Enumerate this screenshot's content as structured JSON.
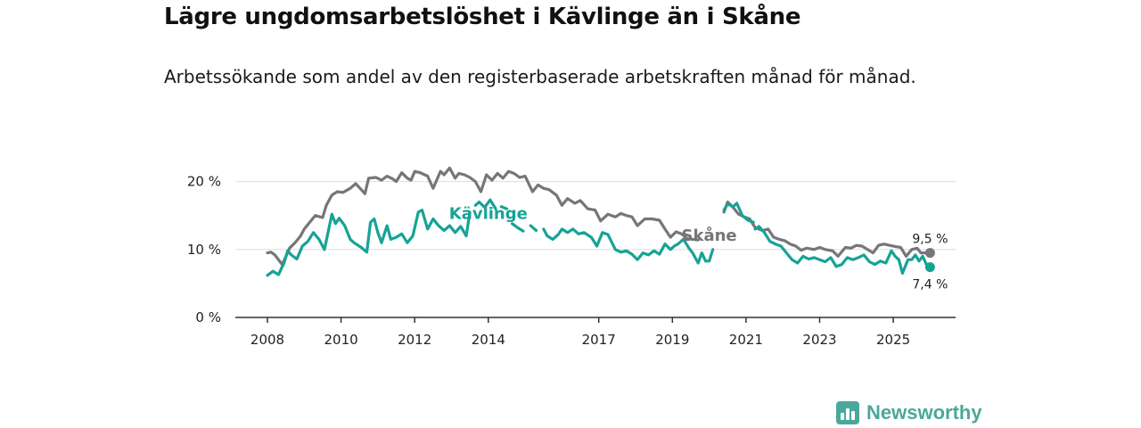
{
  "header": {
    "title": "Lägre ungdomsarbetslöshet i Kävlinge än i Skåne",
    "subtitle": "Arbetssökande som andel av den registerbaserade arbetskraften månad för månad."
  },
  "brand": {
    "name": "Newsworthy",
    "color": "#4aa89a"
  },
  "chart_data": {
    "type": "line",
    "title": "Lägre ungdomsarbetslöshet i Kävlinge än i Skåne",
    "subtitle": "Arbetssökande som andel av den registerbaserade arbetskraften månad för månad.",
    "xlabel": "",
    "ylabel": "",
    "xlim": [
      2008.0,
      2026.5
    ],
    "ylim": [
      0,
      22
    ],
    "grid": true,
    "x_ticks": [
      {
        "value": 2008,
        "label": "2008"
      },
      {
        "value": 2010,
        "label": "2010"
      },
      {
        "value": 2012,
        "label": "2012"
      },
      {
        "value": 2014,
        "label": "2014"
      },
      {
        "value": 2017,
        "label": "2017"
      },
      {
        "value": 2019,
        "label": "2019"
      },
      {
        "value": 2021,
        "label": "2021"
      },
      {
        "value": 2023,
        "label": "2023"
      },
      {
        "value": 2025,
        "label": "2025"
      }
    ],
    "y_ticks": [
      {
        "value": 0,
        "label": "0 %"
      },
      {
        "value": 10,
        "label": "10 %"
      },
      {
        "value": 20,
        "label": "20 %"
      }
    ],
    "series": [
      {
        "name": "Skåne",
        "color": "#76757a",
        "end_label": "9,5 %",
        "points": [
          [
            2008.0,
            9.5
          ],
          [
            2008.1,
            9.6
          ],
          [
            2008.2,
            9.2
          ],
          [
            2008.3,
            8.5
          ],
          [
            2008.4,
            7.8
          ],
          [
            2008.5,
            8.9
          ],
          [
            2008.6,
            10.2
          ],
          [
            2008.75,
            11.0
          ],
          [
            2008.9,
            12.0
          ],
          [
            2009.0,
            13.0
          ],
          [
            2009.15,
            14.0
          ],
          [
            2009.3,
            15.0
          ],
          [
            2009.5,
            14.7
          ],
          [
            2009.6,
            16.5
          ],
          [
            2009.75,
            18.0
          ],
          [
            2009.9,
            18.5
          ],
          [
            2010.05,
            18.4
          ],
          [
            2010.25,
            19.0
          ],
          [
            2010.4,
            19.7
          ],
          [
            2010.55,
            18.8
          ],
          [
            2010.65,
            18.2
          ],
          [
            2010.75,
            20.5
          ],
          [
            2010.95,
            20.6
          ],
          [
            2011.1,
            20.2
          ],
          [
            2011.25,
            20.8
          ],
          [
            2011.4,
            20.4
          ],
          [
            2011.5,
            20.0
          ],
          [
            2011.65,
            21.3
          ],
          [
            2011.8,
            20.5
          ],
          [
            2011.9,
            20.2
          ],
          [
            2012.0,
            21.5
          ],
          [
            2012.15,
            21.3
          ],
          [
            2012.35,
            20.8
          ],
          [
            2012.5,
            19.0
          ],
          [
            2012.7,
            21.5
          ],
          [
            2012.8,
            21.0
          ],
          [
            2012.95,
            22.0
          ],
          [
            2013.1,
            20.5
          ],
          [
            2013.2,
            21.2
          ],
          [
            2013.35,
            21.0
          ],
          [
            2013.5,
            20.6
          ],
          [
            2013.65,
            20.0
          ],
          [
            2013.8,
            18.5
          ],
          [
            2013.95,
            21.0
          ],
          [
            2014.1,
            20.2
          ],
          [
            2014.25,
            21.2
          ],
          [
            2014.4,
            20.5
          ],
          [
            2014.55,
            21.5
          ],
          [
            2014.7,
            21.2
          ],
          [
            2014.85,
            20.6
          ],
          [
            2015.0,
            20.8
          ],
          [
            2015.2,
            18.5
          ],
          [
            2015.35,
            19.5
          ],
          [
            2015.5,
            19.0
          ],
          [
            2015.65,
            18.8
          ],
          [
            2015.85,
            18.0
          ],
          [
            2016.0,
            16.5
          ],
          [
            2016.15,
            17.5
          ],
          [
            2016.35,
            16.8
          ],
          [
            2016.5,
            17.2
          ],
          [
            2016.7,
            16.0
          ],
          [
            2016.9,
            15.8
          ],
          [
            2017.05,
            14.2
          ],
          [
            2017.25,
            15.2
          ],
          [
            2017.45,
            14.8
          ],
          [
            2017.6,
            15.3
          ],
          [
            2017.75,
            15.0
          ],
          [
            2017.9,
            14.8
          ],
          [
            2018.05,
            13.5
          ],
          [
            2018.25,
            14.5
          ],
          [
            2018.45,
            14.5
          ],
          [
            2018.65,
            14.3
          ],
          [
            2018.8,
            13.0
          ],
          [
            2018.95,
            11.8
          ],
          [
            2019.1,
            12.6
          ],
          [
            2019.25,
            12.3
          ],
          [
            2019.4,
            11.6
          ],
          [
            2019.55,
            11.5
          ],
          [
            2019.7,
            11.4
          ],
          null,
          [
            2020.4,
            15.5
          ],
          [
            2020.5,
            17.0
          ],
          [
            2020.65,
            16.2
          ],
          [
            2020.8,
            15.2
          ],
          [
            2020.95,
            14.8
          ],
          [
            2021.1,
            14.5
          ],
          [
            2021.25,
            13.2
          ],
          [
            2021.45,
            12.8
          ],
          [
            2021.6,
            13.0
          ],
          [
            2021.75,
            11.8
          ],
          [
            2021.9,
            11.5
          ],
          [
            2022.05,
            11.3
          ],
          [
            2022.2,
            10.8
          ],
          [
            2022.35,
            10.5
          ],
          [
            2022.5,
            9.9
          ],
          [
            2022.65,
            10.2
          ],
          [
            2022.85,
            10.0
          ],
          [
            2023.0,
            10.3
          ],
          [
            2023.15,
            10.0
          ],
          [
            2023.35,
            9.8
          ],
          [
            2023.5,
            9.0
          ],
          [
            2023.7,
            10.3
          ],
          [
            2023.85,
            10.2
          ],
          [
            2024.0,
            10.6
          ],
          [
            2024.15,
            10.5
          ],
          [
            2024.3,
            10.0
          ],
          [
            2024.45,
            9.5
          ],
          [
            2024.6,
            10.6
          ],
          [
            2024.75,
            10.8
          ],
          [
            2024.9,
            10.6
          ],
          [
            2025.1,
            10.4
          ],
          [
            2025.2,
            10.3
          ],
          [
            2025.35,
            9.0
          ],
          [
            2025.5,
            10.0
          ],
          [
            2025.65,
            10.2
          ],
          [
            2025.75,
            9.5
          ],
          [
            2025.9,
            9.5
          ],
          [
            2026.0,
            9.5
          ]
        ]
      },
      {
        "name": "Kävlinge",
        "color": "#16a396",
        "end_label": "7,4 %",
        "points": [
          [
            2008.0,
            6.2
          ],
          [
            2008.15,
            6.8
          ],
          [
            2008.3,
            6.3
          ],
          [
            2008.45,
            8.0
          ],
          [
            2008.55,
            9.8
          ],
          [
            2008.65,
            9.2
          ],
          [
            2008.8,
            8.6
          ],
          [
            2008.95,
            10.5
          ],
          [
            2009.1,
            11.2
          ],
          [
            2009.25,
            12.5
          ],
          [
            2009.4,
            11.5
          ],
          [
            2009.55,
            10.0
          ],
          [
            2009.75,
            15.2
          ],
          [
            2009.85,
            13.8
          ],
          [
            2009.95,
            14.6
          ],
          [
            2010.1,
            13.5
          ],
          [
            2010.25,
            11.5
          ],
          [
            2010.35,
            11.0
          ],
          [
            2010.55,
            10.3
          ],
          [
            2010.7,
            9.6
          ],
          [
            2010.8,
            14.0
          ],
          [
            2010.9,
            14.5
          ],
          [
            2011.0,
            12.5
          ],
          [
            2011.1,
            11.0
          ],
          [
            2011.25,
            13.5
          ],
          [
            2011.35,
            11.5
          ],
          [
            2011.5,
            11.8
          ],
          [
            2011.65,
            12.3
          ],
          [
            2011.8,
            11.0
          ],
          [
            2011.95,
            12.0
          ],
          [
            2012.1,
            15.5
          ],
          [
            2012.2,
            15.8
          ],
          [
            2012.35,
            13.0
          ],
          [
            2012.5,
            14.5
          ],
          [
            2012.65,
            13.5
          ],
          [
            2012.8,
            12.8
          ],
          [
            2012.95,
            13.5
          ],
          [
            2013.1,
            12.5
          ],
          [
            2013.25,
            13.4
          ],
          [
            2013.4,
            12.0
          ],
          [
            2013.5,
            15.5
          ],
          null,
          [
            2013.65,
            16.5
          ],
          [
            2013.75,
            17.0
          ],
          [
            2013.9,
            16.2
          ],
          [
            2014.05,
            17.3
          ],
          [
            2014.2,
            16.0
          ],
          null,
          [
            2014.35,
            16.3
          ],
          [
            2014.5,
            16.0
          ],
          null,
          [
            2014.65,
            13.8
          ],
          [
            2014.8,
            13.2
          ],
          [
            2014.95,
            12.7
          ],
          null,
          [
            2015.15,
            13.5
          ],
          [
            2015.3,
            12.8
          ],
          null,
          [
            2015.5,
            13.0
          ],
          [
            2015.6,
            12.0
          ],
          [
            2015.75,
            11.5
          ],
          [
            2015.9,
            12.2
          ],
          [
            2016.0,
            13.0
          ],
          [
            2016.15,
            12.5
          ],
          [
            2016.3,
            13.0
          ],
          [
            2016.45,
            12.3
          ],
          [
            2016.6,
            12.5
          ],
          [
            2016.8,
            11.8
          ],
          [
            2016.95,
            10.5
          ],
          [
            2017.1,
            12.5
          ],
          [
            2017.25,
            12.2
          ],
          [
            2017.45,
            10.0
          ],
          [
            2017.6,
            9.6
          ],
          [
            2017.75,
            9.8
          ],
          [
            2017.9,
            9.3
          ],
          [
            2018.05,
            8.5
          ],
          [
            2018.2,
            9.5
          ],
          [
            2018.35,
            9.2
          ],
          [
            2018.5,
            9.8
          ],
          [
            2018.65,
            9.3
          ],
          [
            2018.8,
            10.8
          ],
          [
            2018.95,
            10.0
          ],
          [
            2019.05,
            10.5
          ],
          [
            2019.15,
            10.8
          ],
          [
            2019.3,
            11.5
          ],
          [
            2019.45,
            10.2
          ],
          [
            2019.55,
            9.5
          ],
          [
            2019.7,
            8.0
          ],
          [
            2019.8,
            9.5
          ],
          [
            2019.9,
            8.3
          ],
          [
            2020.0,
            8.3
          ],
          [
            2020.1,
            10.0
          ],
          null,
          [
            2021.25,
            13.0
          ],
          [
            2021.35,
            13.4
          ],
          [
            2021.5,
            12.5
          ],
          [
            2021.65,
            11.2
          ],
          [
            2021.8,
            10.8
          ],
          [
            2021.95,
            10.5
          ],
          [
            2022.1,
            9.5
          ],
          [
            2022.25,
            8.5
          ],
          [
            2022.4,
            8.0
          ],
          [
            2022.55,
            9.0
          ],
          [
            2022.7,
            8.6
          ],
          [
            2022.85,
            8.8
          ],
          [
            2023.0,
            8.5
          ],
          [
            2023.15,
            8.2
          ],
          [
            2023.3,
            8.8
          ],
          [
            2023.45,
            7.5
          ],
          [
            2023.6,
            7.8
          ],
          [
            2023.75,
            8.8
          ],
          [
            2023.9,
            8.5
          ],
          [
            2024.05,
            8.8
          ],
          [
            2024.2,
            9.2
          ],
          [
            2024.35,
            8.2
          ],
          [
            2024.5,
            7.8
          ],
          [
            2024.65,
            8.3
          ],
          [
            2024.8,
            8.0
          ],
          [
            2024.95,
            9.8
          ],
          [
            2025.05,
            9.0
          ],
          [
            2025.15,
            8.5
          ],
          [
            2025.25,
            6.5
          ],
          [
            2025.4,
            8.5
          ],
          [
            2025.5,
            8.5
          ],
          [
            2025.6,
            9.2
          ],
          [
            2025.7,
            8.3
          ],
          [
            2025.8,
            9.0
          ],
          [
            2025.9,
            7.8
          ],
          [
            2026.0,
            7.4
          ]
        ]
      },
      {
        "name": "Kävlinge (2020–2021)",
        "color": "#16a396",
        "points": [
          [
            2020.4,
            15.8
          ],
          [
            2020.5,
            16.7
          ],
          [
            2020.65,
            16.3
          ],
          [
            2020.75,
            16.8
          ],
          [
            2020.9,
            15.0
          ],
          [
            2021.05,
            14.3
          ],
          [
            2021.2,
            14.0
          ]
        ]
      }
    ],
    "annotations": [
      {
        "text": "Kävlinge",
        "series": "Kävlinge",
        "x": 2014.0,
        "y": 14.5
      },
      {
        "text": "Skåne",
        "series": "Skåne",
        "x": 2020.0,
        "y": 11.3
      }
    ]
  }
}
